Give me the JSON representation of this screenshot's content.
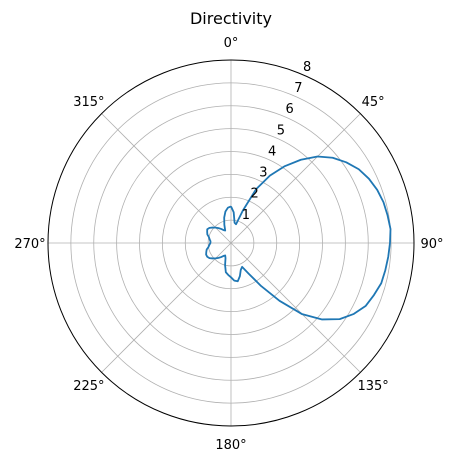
{
  "chart_data": {
    "type": "line",
    "projection": "polar",
    "title": "Directivity",
    "theta_zero_location": "top",
    "theta_direction": "clockwise",
    "theta_ticks": [
      "0°",
      "45°",
      "90°",
      "135°",
      "180°",
      "225°",
      "270°",
      "315°"
    ],
    "theta_tick_degrees": [
      0,
      45,
      90,
      135,
      180,
      225,
      270,
      315
    ],
    "r_ticks": [
      "1",
      "2",
      "3",
      "4",
      "5",
      "6",
      "7",
      "8"
    ],
    "r_tick_values": [
      1,
      2,
      3,
      4,
      5,
      6,
      7,
      8
    ],
    "r_label_angle_deg": 22.5,
    "rlim": [
      0,
      8
    ],
    "grid": true,
    "series": [
      {
        "color": "#1f77b4",
        "theta_deg": [
          0,
          5,
          10,
          15,
          20,
          25,
          30,
          35,
          40,
          45,
          50,
          55,
          60,
          65,
          70,
          75,
          80,
          85,
          90,
          95,
          100,
          105,
          110,
          115,
          120,
          125,
          130,
          135,
          140,
          145,
          150,
          155,
          160,
          165,
          170,
          175,
          180,
          185,
          190,
          195,
          200,
          205,
          210,
          215,
          220,
          225,
          230,
          235,
          240,
          245,
          250,
          255,
          260,
          265,
          270,
          275,
          280,
          285,
          290,
          295,
          300,
          305,
          310,
          315,
          320,
          325,
          330,
          335,
          340,
          345,
          350,
          355,
          360
        ],
        "r": [
          1.6,
          1.35,
          0.9,
          0.85,
          1.5,
          2.6,
          3.4,
          4.1,
          4.75,
          5.35,
          5.8,
          6.15,
          6.45,
          6.65,
          6.8,
          6.9,
          6.95,
          7.0,
          6.95,
          6.9,
          6.85,
          6.8,
          6.65,
          6.5,
          6.2,
          5.8,
          5.2,
          4.4,
          3.3,
          2.3,
          1.55,
          1.15,
          1.25,
          1.5,
          1.7,
          1.65,
          1.5,
          1.4,
          1.3,
          1.0,
          0.7,
          0.6,
          0.65,
          0.75,
          0.85,
          0.95,
          1.05,
          1.15,
          1.2,
          1.2,
          1.15,
          1.1,
          1.0,
          0.95,
          0.9,
          0.9,
          0.95,
          1.0,
          1.1,
          1.15,
          1.2,
          1.15,
          1.05,
          0.95,
          0.85,
          0.75,
          0.65,
          0.6,
          0.85,
          1.15,
          1.4,
          1.55,
          1.6
        ]
      }
    ]
  }
}
